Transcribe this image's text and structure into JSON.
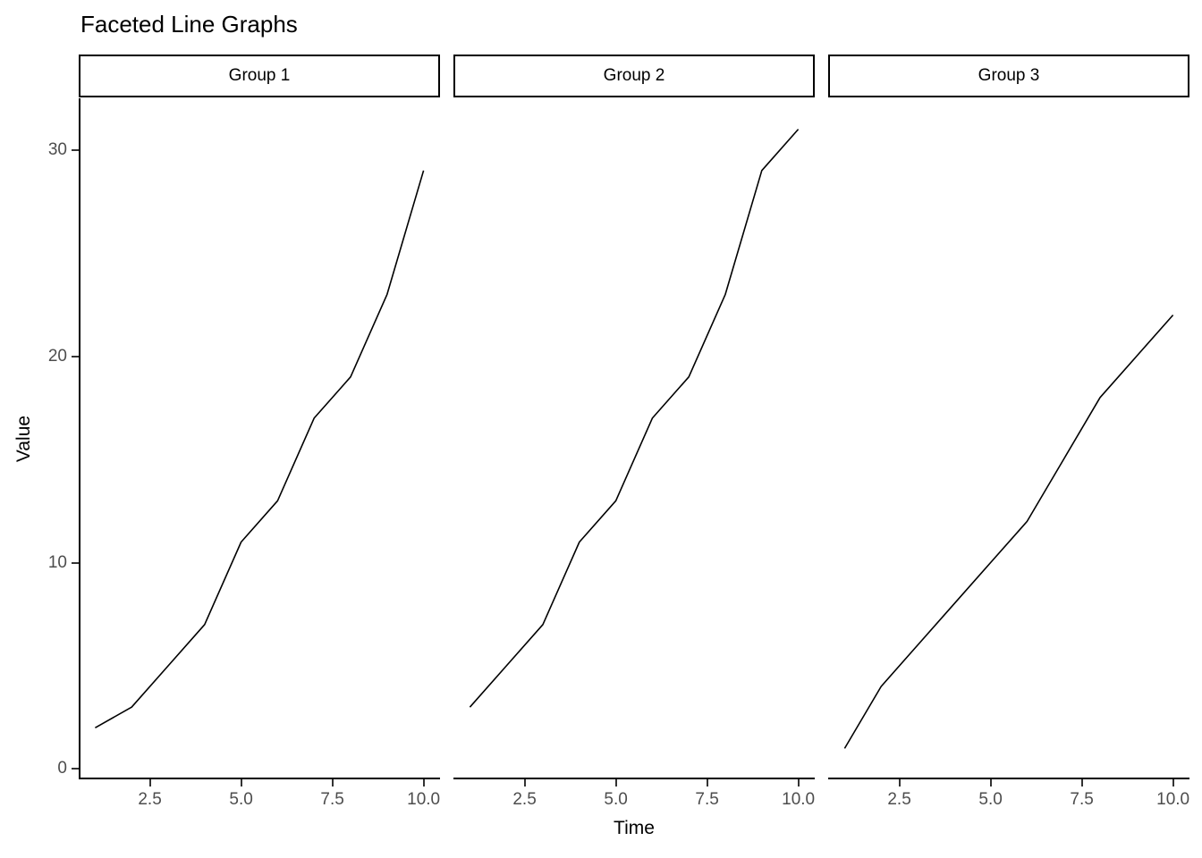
{
  "title": "Faceted Line Graphs",
  "chart_data": {
    "type": "line",
    "title": "Faceted Line Graphs",
    "xlabel": "Time",
    "ylabel": "Value",
    "x": [
      1,
      2,
      3,
      4,
      5,
      6,
      7,
      8,
      9,
      10
    ],
    "facets": [
      {
        "label": "Group 1",
        "values": [
          2,
          3,
          5,
          7,
          11,
          13,
          17,
          19,
          23,
          29
        ]
      },
      {
        "label": "Group 2",
        "values": [
          3,
          5,
          7,
          11,
          13,
          17,
          19,
          23,
          29,
          31
        ]
      },
      {
        "label": "Group 3",
        "values": [
          1,
          4,
          6,
          8,
          10,
          12,
          15,
          18,
          20,
          22
        ]
      }
    ],
    "x_ticks": {
      "values": [
        2.5,
        5.0,
        7.5,
        10.0
      ],
      "labels": [
        "2.5",
        "5.0",
        "7.5",
        "10.0"
      ]
    },
    "y_ticks": {
      "values": [
        0,
        10,
        20,
        30
      ],
      "labels": [
        "0",
        "10",
        "20",
        "30"
      ]
    },
    "xlim": [
      0.55,
      10.45
    ],
    "ylim": [
      -0.5,
      32.5
    ],
    "grid": false,
    "legend": false,
    "line_color": "#000000"
  },
  "colors": {
    "background": "#FFFFFF",
    "axis_text": "#4D4D4D",
    "tick_mark": "#333333",
    "axis_line": "#000000",
    "data_line": "#000000",
    "strip_border": "#000000",
    "strip_background": "#FFFFFF",
    "title_text": "#000000"
  }
}
